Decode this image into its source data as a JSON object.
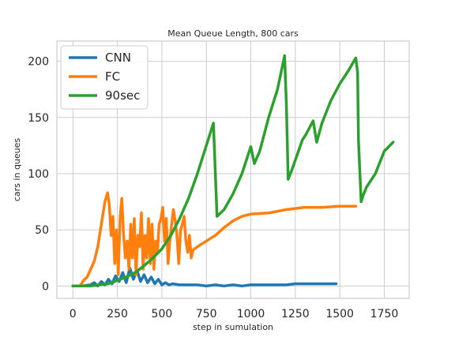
{
  "chart_data": {
    "type": "line",
    "title": "Mean Queue Length, 800 cars",
    "xlabel": "step in sumulation",
    "ylabel": "cars in queues",
    "xlim": [
      -90,
      1890
    ],
    "ylim": [
      -11,
      218
    ],
    "xticks": [
      0,
      250,
      500,
      750,
      1000,
      1250,
      1500,
      1750
    ],
    "yticks": [
      0,
      50,
      100,
      150,
      200
    ],
    "grid": true,
    "legend_position": "top-left",
    "series": [
      {
        "name": "CNN",
        "color": "#1f77b4",
        "x": [
          0,
          50,
          100,
          120,
          140,
          160,
          180,
          200,
          220,
          240,
          260,
          280,
          300,
          320,
          340,
          360,
          380,
          400,
          420,
          440,
          460,
          480,
          500,
          520,
          540,
          560,
          600,
          650,
          700,
          750,
          800,
          850,
          900,
          950,
          1000,
          1050,
          1100,
          1150,
          1200,
          1250,
          1300,
          1400,
          1480
        ],
        "y": [
          0,
          0,
          1,
          3,
          0,
          4,
          1,
          6,
          2,
          9,
          4,
          12,
          3,
          16,
          6,
          14,
          4,
          10,
          3,
          8,
          2,
          6,
          1,
          3,
          1,
          2,
          1,
          1,
          1,
          0,
          1,
          0,
          1,
          0,
          1,
          1,
          1,
          1,
          1,
          2,
          2,
          2,
          2
        ]
      },
      {
        "name": "FC",
        "color": "#ff7f0e",
        "x": [
          0,
          40,
          60,
          80,
          100,
          120,
          140,
          160,
          180,
          195,
          205,
          215,
          225,
          235,
          245,
          255,
          265,
          275,
          285,
          295,
          305,
          315,
          325,
          335,
          345,
          355,
          365,
          375,
          385,
          395,
          405,
          415,
          425,
          435,
          445,
          455,
          465,
          475,
          485,
          495,
          505,
          515,
          525,
          535,
          545,
          555,
          565,
          575,
          585,
          595,
          605,
          615,
          625,
          635,
          645,
          655,
          665,
          675,
          700,
          750,
          800,
          850,
          900,
          950,
          1000,
          1100,
          1200,
          1250,
          1300,
          1400,
          1500,
          1590
        ],
        "y": [
          0,
          0,
          5,
          8,
          15,
          22,
          35,
          55,
          75,
          83,
          72,
          45,
          62,
          20,
          50,
          10,
          60,
          78,
          45,
          25,
          40,
          15,
          55,
          25,
          60,
          10,
          45,
          35,
          65,
          15,
          45,
          25,
          60,
          20,
          55,
          15,
          40,
          30,
          55,
          60,
          70,
          40,
          60,
          20,
          40,
          55,
          68,
          58,
          45,
          20,
          50,
          55,
          62,
          40,
          30,
          45,
          25,
          32,
          35,
          40,
          45,
          52,
          58,
          62,
          64,
          65,
          68,
          69,
          70,
          70,
          71,
          71
        ]
      },
      {
        "name": "90sec",
        "color": "#2ca02c",
        "x": [
          0,
          100,
          200,
          250,
          300,
          350,
          400,
          450,
          500,
          550,
          600,
          650,
          700,
          750,
          790,
          810,
          850,
          900,
          950,
          1000,
          1020,
          1050,
          1100,
          1150,
          1190,
          1200,
          1210,
          1230,
          1250,
          1290,
          1310,
          1350,
          1370,
          1400,
          1450,
          1500,
          1550,
          1590,
          1600,
          1605,
          1620,
          1630,
          1650,
          1700,
          1750,
          1800
        ],
        "y": [
          0,
          0,
          2,
          5,
          8,
          12,
          18,
          25,
          33,
          45,
          60,
          78,
          100,
          125,
          145,
          62,
          68,
          82,
          100,
          124,
          109,
          120,
          150,
          175,
          205,
          160,
          95,
          103,
          112,
          130,
          135,
          147,
          128,
          145,
          165,
          180,
          192,
          203,
          190,
          130,
          75,
          80,
          88,
          100,
          120,
          128
        ]
      }
    ]
  }
}
